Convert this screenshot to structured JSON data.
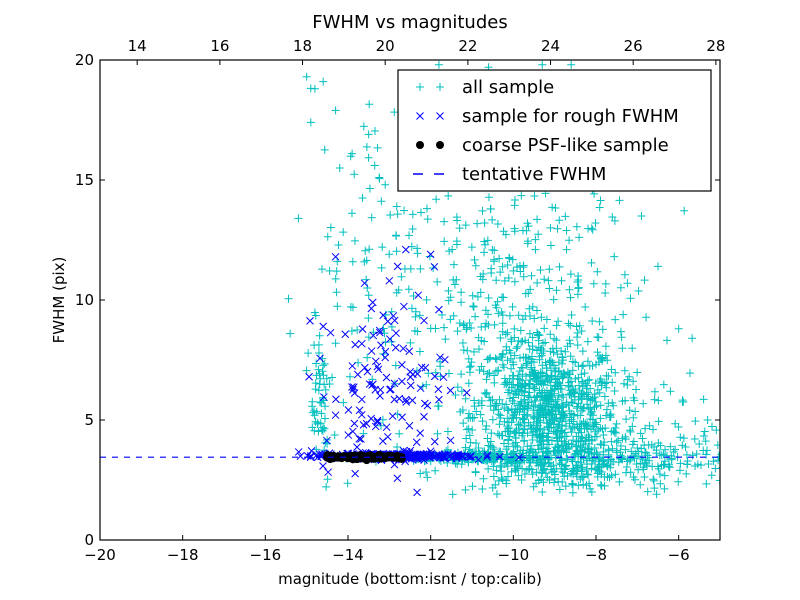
{
  "chart_data": {
    "type": "scatter",
    "title": "FWHM vs magnitudes",
    "xlabel": "magnitude (bottom:isnt / top:calib)",
    "ylabel": "FWHM (pix)",
    "xlim": [
      -20,
      -5
    ],
    "ylim": [
      0,
      20
    ],
    "top_xlim": [
      13.1,
      28.1
    ],
    "x_ticks": [
      -20,
      -18,
      -16,
      -14,
      -12,
      -10,
      -8,
      -6
    ],
    "x_tick_labels": [
      "−20",
      "−18",
      "−16",
      "−14",
      "−12",
      "−10",
      "−8",
      "−6"
    ],
    "top_ticks": [
      14,
      16,
      18,
      20,
      22,
      24,
      26,
      28
    ],
    "top_tick_labels": [
      "14",
      "16",
      "18",
      "20",
      "22",
      "24",
      "26",
      "28"
    ],
    "y_ticks": [
      0,
      5,
      10,
      15,
      20
    ],
    "y_tick_labels": [
      "0",
      "5",
      "10",
      "15",
      "20"
    ],
    "grid": false,
    "legend_position": "top-right",
    "tentative_fwhm": 3.45,
    "series": [
      {
        "name": "all sample",
        "marker": "+",
        "color": "#00bfbf",
        "clusters": [
          {
            "x_mean": -9.2,
            "x_sd": 0.9,
            "y_mean": 5.2,
            "y_sd": 1.6,
            "n": 900
          },
          {
            "x_mean": -9.8,
            "x_sd": 1.5,
            "y_mean": 9.5,
            "y_sd": 3.5,
            "n": 380
          },
          {
            "x_mean": -8.0,
            "x_sd": 1.6,
            "y_mean": 3.3,
            "y_sd": 0.45,
            "n": 260
          },
          {
            "x_mean": -11.0,
            "x_sd": 0.7,
            "y_mean": 3.45,
            "y_sd": 0.12,
            "n": 160
          },
          {
            "x_mean": -14.7,
            "x_sd": 0.15,
            "y_mean": 6.0,
            "y_sd": 2.0,
            "n": 60
          },
          {
            "x_mean": -13.0,
            "x_sd": 1.0,
            "y_mean": 11.0,
            "y_sd": 4.0,
            "n": 110
          },
          {
            "x_mean": -6.5,
            "x_sd": 1.0,
            "y_mean": 4.0,
            "y_sd": 1.2,
            "n": 60
          }
        ],
        "extra_points": [
          [
            -15.0,
            19.3
          ],
          [
            -14.6,
            19.1
          ],
          [
            -14.8,
            18.8
          ],
          [
            -14.3,
            17.9
          ],
          [
            -14.9,
            17.4
          ],
          [
            -15.2,
            13.4
          ],
          [
            -15.4,
            8.6
          ],
          [
            -14.3,
            8.2
          ],
          [
            -13.5,
            16.9
          ],
          [
            -13.9,
            16.1
          ],
          [
            -11.8,
            19.8
          ],
          [
            -10.6,
            19.7
          ],
          [
            -9.3,
            19.8
          ],
          [
            -8.6,
            19.8
          ],
          [
            -6.9,
            13.5
          ],
          [
            -6.5,
            11.4
          ],
          [
            -6.0,
            8.8
          ],
          [
            -6.2,
            6.2
          ],
          [
            -5.3,
            5.0
          ],
          [
            -9.3,
            2.0
          ],
          [
            -8.1,
            2.0
          ],
          [
            -9.8,
            2.5
          ],
          [
            -5.2,
            2.7
          ],
          [
            -14.2,
            15.5
          ],
          [
            -13.1,
            14.8
          ]
        ]
      },
      {
        "name": "sample for rough FWHM",
        "marker": "x",
        "color": "#0000ff",
        "clusters": [
          {
            "x_mean": -13.1,
            "x_sd": 0.75,
            "y_mean": 6.2,
            "y_sd": 1.9,
            "n": 120
          },
          {
            "x_mean": -13.0,
            "x_sd": 0.95,
            "y_mean": 3.5,
            "y_sd": 0.06,
            "n": 260
          }
        ],
        "extra_points": [
          [
            -14.3,
            11.8
          ],
          [
            -13.6,
            10.7
          ],
          [
            -13.4,
            9.9
          ],
          [
            -13.0,
            10.8
          ],
          [
            -12.8,
            11.4
          ],
          [
            -12.6,
            12.1
          ],
          [
            -12.3,
            10.2
          ],
          [
            -12.0,
            11.9
          ],
          [
            -11.8,
            9.6
          ],
          [
            -14.6,
            8.9
          ],
          [
            -14.3,
            5.2
          ],
          [
            -12.0,
            3.7
          ],
          [
            -11.9,
            4.1
          ]
        ]
      },
      {
        "name": "coarse PSF-like sample",
        "marker": "o",
        "color": "#000000",
        "clusters": [
          {
            "x_mean": -13.6,
            "x_sd": 0.55,
            "y_mean": 3.45,
            "y_sd": 0.04,
            "n": 140
          }
        ],
        "x_range": [
          -14.5,
          -12.7
        ],
        "extra_points": []
      },
      {
        "name": "tentative FWHM",
        "marker": "--",
        "color": "#0000ff",
        "y": 3.45
      }
    ]
  }
}
